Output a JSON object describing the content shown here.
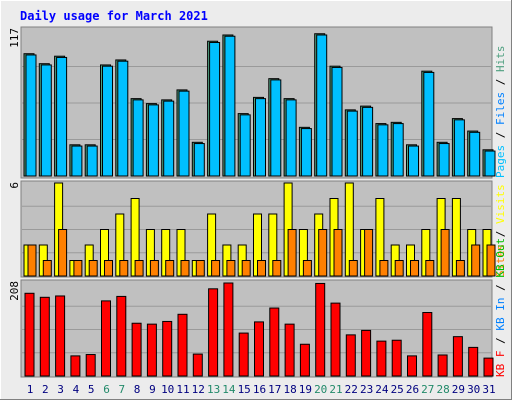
{
  "title": "Daily usage for March 2021",
  "colors": {
    "background": "#ececec",
    "panel": "#c0c0c0",
    "title": "#0000ff",
    "grid": "#9a9a9a",
    "pages": "#00c0ff",
    "files": "#0080ff",
    "hits": "#4fa080",
    "visits": "#ffff00",
    "sites": "#ff8000",
    "kb_f": "#ff0000",
    "kb_in": "#0080ff",
    "kb_out": "#00c000",
    "weekend_day": "#228a6a",
    "weekday": "#000080"
  },
  "chart_data": [
    {
      "type": "bar",
      "panel": "top",
      "ylabel_max": "117",
      "legend": [
        "Pages",
        "Files",
        "Hits"
      ],
      "ylim": [
        0,
        117
      ],
      "categories": [
        "1",
        "2",
        "3",
        "4",
        "5",
        "6",
        "7",
        "8",
        "9",
        "10",
        "11",
        "12",
        "13",
        "14",
        "15",
        "16",
        "17",
        "18",
        "19",
        "20",
        "21",
        "22",
        "23",
        "24",
        "25",
        "26",
        "27",
        "28",
        "29",
        "30",
        "31"
      ],
      "weekend": [
        "6",
        "7",
        "13",
        "14",
        "20",
        "21",
        "27",
        "28"
      ],
      "series": [
        {
          "name": "Hits",
          "values": [
            98,
            90,
            96,
            25,
            25,
            89,
            93,
            62,
            58,
            61,
            69,
            27,
            108,
            113,
            50,
            63,
            78,
            62,
            39,
            114,
            88,
            53,
            56,
            42,
            43,
            25,
            84,
            27,
            46,
            36,
            21
          ]
        },
        {
          "name": "Pages",
          "values": [
            97,
            89,
            95,
            24,
            24,
            88,
            92,
            61,
            57,
            60,
            68,
            26,
            107,
            112,
            49,
            62,
            77,
            61,
            38,
            113,
            87,
            52,
            55,
            41,
            42,
            24,
            83,
            26,
            45,
            35,
            20
          ]
        }
      ]
    },
    {
      "type": "bar",
      "panel": "middle",
      "ylabel_max": "6",
      "legend": [
        "Visits",
        "Sites"
      ],
      "ylim": [
        0,
        6
      ],
      "categories": [
        "1",
        "2",
        "3",
        "4",
        "5",
        "6",
        "7",
        "8",
        "9",
        "10",
        "11",
        "12",
        "13",
        "14",
        "15",
        "16",
        "17",
        "18",
        "19",
        "20",
        "21",
        "22",
        "23",
        "24",
        "25",
        "26",
        "27",
        "28",
        "29",
        "30",
        "31"
      ],
      "series": [
        {
          "name": "Visits",
          "values": [
            2,
            2,
            6,
            1,
            2,
            3,
            4,
            5,
            3,
            3,
            3,
            1,
            4,
            2,
            2,
            4,
            4,
            6,
            3,
            4,
            5,
            6,
            3,
            5,
            2,
            2,
            3,
            5,
            5,
            3,
            3
          ]
        },
        {
          "name": "Sites",
          "values": [
            2,
            1,
            3,
            1,
            1,
            1,
            1,
            1,
            1,
            1,
            1,
            1,
            1,
            1,
            1,
            1,
            1,
            3,
            1,
            3,
            3,
            1,
            3,
            1,
            1,
            1,
            1,
            3,
            1,
            2,
            2
          ]
        }
      ]
    },
    {
      "type": "bar",
      "panel": "bottom",
      "ylabel_max": "208",
      "legend": [
        "KB F",
        "KB In",
        "KB Out"
      ],
      "ylim": [
        0,
        208
      ],
      "categories": [
        "1",
        "2",
        "3",
        "4",
        "5",
        "6",
        "7",
        "8",
        "9",
        "10",
        "11",
        "12",
        "13",
        "14",
        "15",
        "16",
        "17",
        "18",
        "19",
        "20",
        "21",
        "22",
        "23",
        "24",
        "25",
        "26",
        "27",
        "28",
        "29",
        "30",
        "31"
      ],
      "series": [
        {
          "name": "KB F",
          "values": [
            185,
            176,
            179,
            45,
            48,
            168,
            178,
            118,
            116,
            122,
            138,
            49,
            195,
            208,
            96,
            121,
            152,
            116,
            71,
            207,
            163,
            92,
            102,
            78,
            80,
            45,
            142,
            47,
            88,
            64,
            40
          ]
        }
      ]
    }
  ]
}
